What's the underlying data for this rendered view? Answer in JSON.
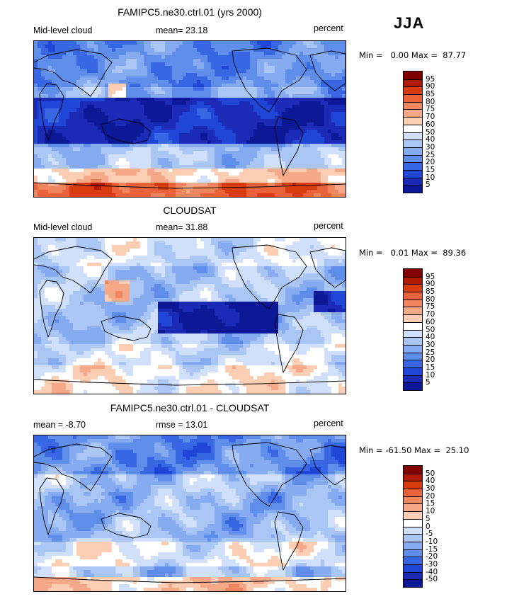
{
  "season": "JJA",
  "panels": [
    {
      "title": "FAMIPC5.ne30.ctrl.01 (yrs 2000)",
      "left_label": "Mid-level cloud",
      "center_label": "mean=  23.18",
      "right_label": "percent",
      "minmax": "Min =   0.00 Max =  87.77",
      "colorbar_labels": [
        "95",
        "90",
        "85",
        "80",
        "75",
        "70",
        "60",
        "50",
        "40",
        "30",
        "25",
        "20",
        "15",
        "10",
        "5"
      ],
      "field": {
        "mean": 23.18,
        "min": 0.0,
        "max": 87.77
      }
    },
    {
      "title": "CLOUDSAT",
      "left_label": "Mid-level cloud",
      "center_label": "mean=  31.88",
      "right_label": "percent",
      "minmax": "Min =   0.01 Max =  89.36",
      "colorbar_labels": [
        "95",
        "90",
        "85",
        "80",
        "75",
        "70",
        "60",
        "50",
        "40",
        "30",
        "25",
        "20",
        "15",
        "10",
        "5"
      ],
      "field": {
        "mean": 31.88,
        "min": 0.01,
        "max": 89.36
      }
    },
    {
      "title": "FAMIPC5.ne30.ctrl.01 - CLOUDSAT",
      "left_label": "mean =  -8.70",
      "center_label": "rmse =  13.01",
      "right_label": "percent",
      "minmax": "Min = -61.50 Max =  25.10",
      "colorbar_labels": [
        "50",
        "40",
        "30",
        "20",
        "15",
        "10",
        "5",
        "0",
        "-5",
        "-10",
        "-15",
        "-20",
        "-30",
        "-40",
        "-50"
      ],
      "field": {
        "mean": -8.7,
        "rmse": 13.01,
        "min": -61.5,
        "max": 25.1
      }
    }
  ],
  "colors": {
    "palette": [
      "#800000",
      "#b01a00",
      "#d83b10",
      "#e9623a",
      "#f08660",
      "#f6a988",
      "#fbcdb3",
      "#ffffff",
      "#d0e0fa",
      "#a9c6f5",
      "#86abf0",
      "#5f8dea",
      "#3767e3",
      "#1f46d6",
      "#1c2ab8",
      "#0d1896"
    ]
  }
}
